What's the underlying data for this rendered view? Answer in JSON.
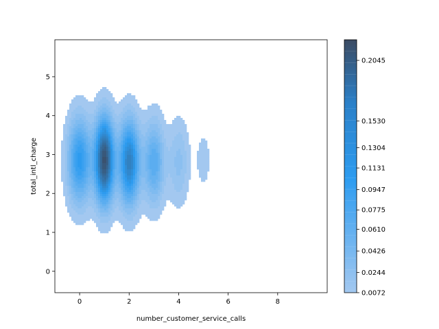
{
  "chart_data": {
    "type": "heatmap",
    "subtype": "kde-filled-contour",
    "title": "",
    "xlabel": "number_customer_service_calls",
    "ylabel": "total_intl_charge",
    "xlim": [
      -1,
      10
    ],
    "ylim": [
      -0.55,
      5.95
    ],
    "xticks": [
      0,
      2,
      4,
      6,
      8
    ],
    "yticks": [
      0,
      1,
      2,
      3,
      4,
      5
    ],
    "grid": false,
    "colorbar": {
      "ticks": [
        "0.0072",
        "0.0244",
        "0.0426",
        "0.0610",
        "0.0775",
        "0.0947",
        "0.1131",
        "0.1304",
        "0.1530",
        "0.2045"
      ],
      "min": 0.0072,
      "max": 0.222,
      "color_low": "#a3c8f0",
      "color_mid": "#2d9cf0",
      "color_high": "#3b4b63"
    },
    "blobs": [
      {
        "x": 0,
        "y": 2.85,
        "peak": 0.11,
        "sx": 0.32,
        "sy": 0.72
      },
      {
        "x": 1,
        "y": 2.85,
        "peak": 0.215,
        "sx": 0.26,
        "sy": 0.72
      },
      {
        "x": 2,
        "y": 2.8,
        "peak": 0.15,
        "sx": 0.28,
        "sy": 0.72
      },
      {
        "x": 3,
        "y": 2.8,
        "peak": 0.075,
        "sx": 0.28,
        "sy": 0.7
      },
      {
        "x": 4,
        "y": 2.8,
        "peak": 0.03,
        "sx": 0.28,
        "sy": 0.7
      },
      {
        "x": 5,
        "y": 2.85,
        "peak": 0.012,
        "sx": 0.22,
        "sy": 0.55
      }
    ]
  }
}
